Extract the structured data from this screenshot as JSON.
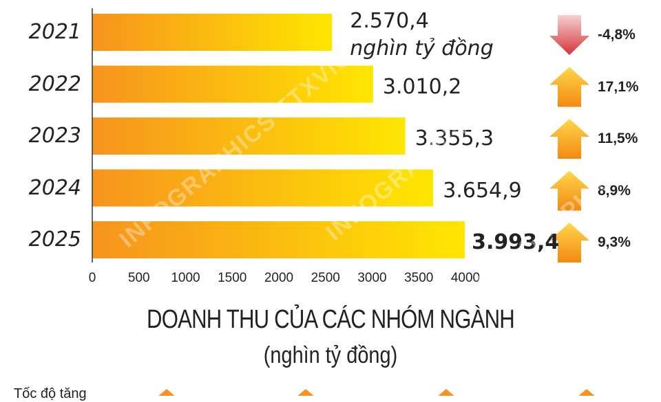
{
  "chart_data": {
    "type": "bar",
    "orientation": "horizontal",
    "title": "DOANH THU CỦA CÁC NHÓM NGÀNH",
    "subtitle": "(nghìn tỷ đồng)",
    "categories": [
      "2021",
      "2022",
      "2023",
      "2024",
      "2025"
    ],
    "values": [
      2570.4,
      3010.2,
      3355.3,
      3654.9,
      3993.4
    ],
    "value_labels": [
      "2.570,4",
      "3.010,2",
      "3.355,3",
      "3.654,9",
      "3.993,4"
    ],
    "first_unit_label": "nghìn tỷ đồng",
    "xlim": [
      0,
      4000
    ],
    "x_ticks": [
      "0",
      "500",
      "1000",
      "1500",
      "2000",
      "2500",
      "3000",
      "3500",
      "4000"
    ],
    "growth": [
      {
        "label": "-4,8%",
        "direction": "down"
      },
      {
        "label": "17,1%",
        "direction": "up"
      },
      {
        "label": "11,5%",
        "direction": "up"
      },
      {
        "label": "8,9%",
        "direction": "up"
      },
      {
        "label": "9,3%",
        "direction": "up"
      }
    ],
    "colors": {
      "bar_start": "#f7931e",
      "bar_end": "#ffe600",
      "arrow_up": "#f7a21b",
      "arrow_down": "#d2343a",
      "axis": "#333333"
    },
    "grid": false
  },
  "footer_text": "Tốc độ tăng",
  "watermark_text": "INFOGRAPHICS TTXVN"
}
